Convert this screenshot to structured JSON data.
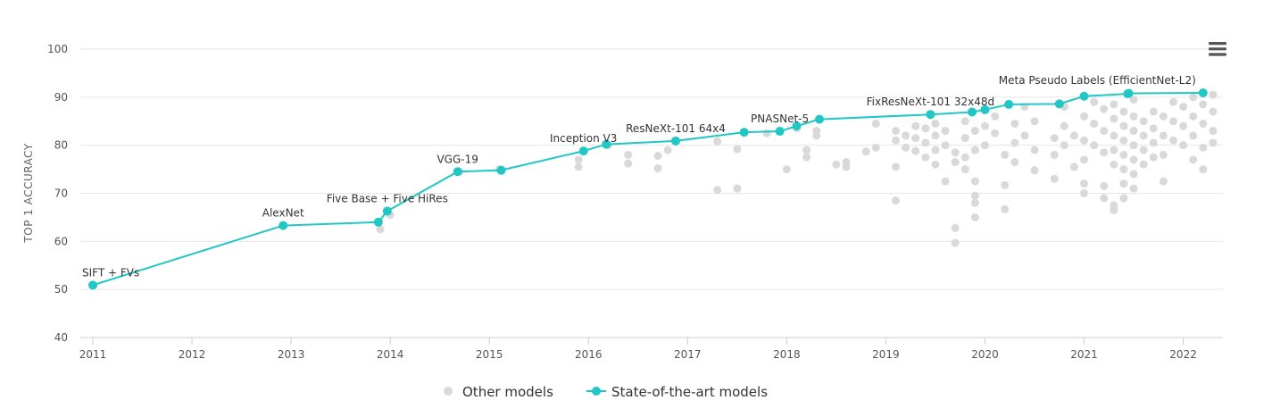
{
  "chart_data": {
    "type": "scatter",
    "ylabel": "TOP 1 ACCURACY",
    "xlabel": "",
    "title": "",
    "xlim": [
      2011,
      2022.4
    ],
    "ylim": [
      40,
      100
    ],
    "x_ticks": [
      2011,
      2012,
      2013,
      2014,
      2015,
      2016,
      2017,
      2018,
      2019,
      2020,
      2021,
      2022
    ],
    "y_ticks": [
      40,
      50,
      60,
      70,
      80,
      90,
      100
    ],
    "grid": "horizontal",
    "legend_position": "bottom-center",
    "series": [
      {
        "name": "Other models",
        "kind": "scatter",
        "color": "#d9d9d9",
        "points": [
          [
            2013.9,
            62.5
          ],
          [
            2014.0,
            65.5
          ],
          [
            2014.7,
            74.5
          ],
          [
            2015.1,
            75.0
          ],
          [
            2015.9,
            77.0
          ],
          [
            2015.9,
            75.5
          ],
          [
            2016.2,
            80.0
          ],
          [
            2016.4,
            78.0
          ],
          [
            2016.4,
            76.2
          ],
          [
            2016.7,
            77.8
          ],
          [
            2016.7,
            75.2
          ],
          [
            2016.8,
            79.0
          ],
          [
            2017.3,
            70.7
          ],
          [
            2017.3,
            80.8
          ],
          [
            2017.5,
            71.0
          ],
          [
            2017.5,
            79.2
          ],
          [
            2017.8,
            82.5
          ],
          [
            2018.0,
            75.0
          ],
          [
            2018.1,
            83.5
          ],
          [
            2018.2,
            79.0
          ],
          [
            2018.2,
            77.5
          ],
          [
            2018.3,
            83.0
          ],
          [
            2018.3,
            82.0
          ],
          [
            2018.5,
            76.0
          ],
          [
            2018.6,
            76.5
          ],
          [
            2018.6,
            75.5
          ],
          [
            2018.8,
            78.7
          ],
          [
            2018.9,
            84.5
          ],
          [
            2018.9,
            79.5
          ],
          [
            2019.1,
            68.5
          ],
          [
            2019.1,
            83.0
          ],
          [
            2019.1,
            81.0
          ],
          [
            2019.1,
            75.5
          ],
          [
            2019.2,
            82.0
          ],
          [
            2019.2,
            79.5
          ],
          [
            2019.3,
            84.0
          ],
          [
            2019.3,
            81.5
          ],
          [
            2019.3,
            78.8
          ],
          [
            2019.4,
            83.5
          ],
          [
            2019.4,
            80.5
          ],
          [
            2019.4,
            77.5
          ],
          [
            2019.5,
            84.5
          ],
          [
            2019.5,
            82.0
          ],
          [
            2019.5,
            79.0
          ],
          [
            2019.5,
            76.0
          ],
          [
            2019.6,
            83.0
          ],
          [
            2019.6,
            80.0
          ],
          [
            2019.6,
            72.5
          ],
          [
            2019.7,
            78.5
          ],
          [
            2019.7,
            76.5
          ],
          [
            2019.7,
            62.8
          ],
          [
            2019.7,
            59.7
          ],
          [
            2019.8,
            85.0
          ],
          [
            2019.8,
            81.5
          ],
          [
            2019.8,
            77.5
          ],
          [
            2019.8,
            75.0
          ],
          [
            2019.9,
            83.0
          ],
          [
            2019.9,
            79.0
          ],
          [
            2019.9,
            72.5
          ],
          [
            2019.9,
            69.5
          ],
          [
            2019.9,
            68.0
          ],
          [
            2019.9,
            65.0
          ],
          [
            2020.0,
            84.0
          ],
          [
            2020.0,
            80.0
          ],
          [
            2020.1,
            86.0
          ],
          [
            2020.1,
            82.5
          ],
          [
            2020.2,
            78.0
          ],
          [
            2020.2,
            71.7
          ],
          [
            2020.2,
            66.7
          ],
          [
            2020.3,
            84.5
          ],
          [
            2020.3,
            80.5
          ],
          [
            2020.3,
            76.5
          ],
          [
            2020.4,
            88.0
          ],
          [
            2020.4,
            82.0
          ],
          [
            2020.5,
            85.0
          ],
          [
            2020.5,
            79.0
          ],
          [
            2020.5,
            74.8
          ],
          [
            2020.7,
            81.5
          ],
          [
            2020.7,
            78.0
          ],
          [
            2020.7,
            73.0
          ],
          [
            2020.8,
            88.0
          ],
          [
            2020.8,
            84.0
          ],
          [
            2020.8,
            80.0
          ],
          [
            2020.9,
            82.0
          ],
          [
            2020.9,
            75.5
          ],
          [
            2021.0,
            86.0
          ],
          [
            2021.0,
            81.0
          ],
          [
            2021.0,
            77.0
          ],
          [
            2021.0,
            72.0
          ],
          [
            2021.0,
            70.0
          ],
          [
            2021.1,
            89.0
          ],
          [
            2021.1,
            84.5
          ],
          [
            2021.1,
            80.0
          ],
          [
            2021.2,
            87.5
          ],
          [
            2021.2,
            83.0
          ],
          [
            2021.2,
            78.5
          ],
          [
            2021.2,
            71.5
          ],
          [
            2021.2,
            69.0
          ],
          [
            2021.3,
            88.5
          ],
          [
            2021.3,
            85.5
          ],
          [
            2021.3,
            82.0
          ],
          [
            2021.3,
            79.0
          ],
          [
            2021.3,
            76.0
          ],
          [
            2021.3,
            67.5
          ],
          [
            2021.3,
            66.5
          ],
          [
            2021.4,
            87.0
          ],
          [
            2021.4,
            84.0
          ],
          [
            2021.4,
            81.0
          ],
          [
            2021.4,
            78.0
          ],
          [
            2021.4,
            75.0
          ],
          [
            2021.4,
            72.0
          ],
          [
            2021.4,
            69.0
          ],
          [
            2021.5,
            89.5
          ],
          [
            2021.5,
            86.0
          ],
          [
            2021.5,
            83.0
          ],
          [
            2021.5,
            80.0
          ],
          [
            2021.5,
            77.0
          ],
          [
            2021.5,
            74.0
          ],
          [
            2021.5,
            71.0
          ],
          [
            2021.6,
            85.0
          ],
          [
            2021.6,
            82.0
          ],
          [
            2021.6,
            79.0
          ],
          [
            2021.6,
            76.0
          ],
          [
            2021.7,
            87.0
          ],
          [
            2021.7,
            83.5
          ],
          [
            2021.7,
            80.5
          ],
          [
            2021.7,
            77.5
          ],
          [
            2021.8,
            86.0
          ],
          [
            2021.8,
            82.0
          ],
          [
            2021.8,
            78.0
          ],
          [
            2021.8,
            72.5
          ],
          [
            2021.9,
            89.0
          ],
          [
            2021.9,
            85.0
          ],
          [
            2021.9,
            81.0
          ],
          [
            2022.0,
            88.0
          ],
          [
            2022.0,
            84.0
          ],
          [
            2022.0,
            80.0
          ],
          [
            2022.1,
            90.0
          ],
          [
            2022.1,
            86.0
          ],
          [
            2022.1,
            82.0
          ],
          [
            2022.1,
            77.0
          ],
          [
            2022.2,
            88.5
          ],
          [
            2022.2,
            84.5
          ],
          [
            2022.2,
            79.5
          ],
          [
            2022.2,
            75.0
          ],
          [
            2022.3,
            90.5
          ],
          [
            2022.3,
            87.0
          ],
          [
            2022.3,
            83.0
          ],
          [
            2022.3,
            80.5
          ]
        ]
      },
      {
        "name": "State-of-the-art models",
        "kind": "line",
        "color": "#21c7c4",
        "points": [
          [
            2011.0,
            50.9,
            "SIFT + FVs"
          ],
          [
            2012.92,
            63.3,
            "AlexNet"
          ],
          [
            2013.88,
            64.0,
            ""
          ],
          [
            2013.97,
            66.3,
            "Five Base + Five HiRes"
          ],
          [
            2014.68,
            74.5,
            "VGG-19"
          ],
          [
            2015.12,
            74.8,
            ""
          ],
          [
            2015.95,
            78.8,
            "Inception V3"
          ],
          [
            2016.18,
            80.2,
            ""
          ],
          [
            2016.88,
            80.9,
            "ResNeXt-101 64x4"
          ],
          [
            2017.57,
            82.7,
            ""
          ],
          [
            2017.93,
            82.9,
            "PNASNet-5"
          ],
          [
            2018.1,
            84.0,
            ""
          ],
          [
            2018.33,
            85.4,
            ""
          ],
          [
            2019.45,
            86.4,
            "FixResNeXt-101 32x48d"
          ],
          [
            2019.87,
            86.9,
            ""
          ],
          [
            2020.0,
            87.4,
            ""
          ],
          [
            2020.24,
            88.5,
            ""
          ],
          [
            2020.75,
            88.6,
            ""
          ],
          [
            2021.0,
            90.2,
            ""
          ],
          [
            2021.44,
            90.7,
            ""
          ],
          [
            2021.45,
            90.8,
            ""
          ],
          [
            2022.2,
            90.9,
            "Meta Pseudo Labels (EfficientNet-L2)"
          ]
        ]
      }
    ]
  },
  "ui": {
    "menu_icon": "hamburger-icon"
  }
}
